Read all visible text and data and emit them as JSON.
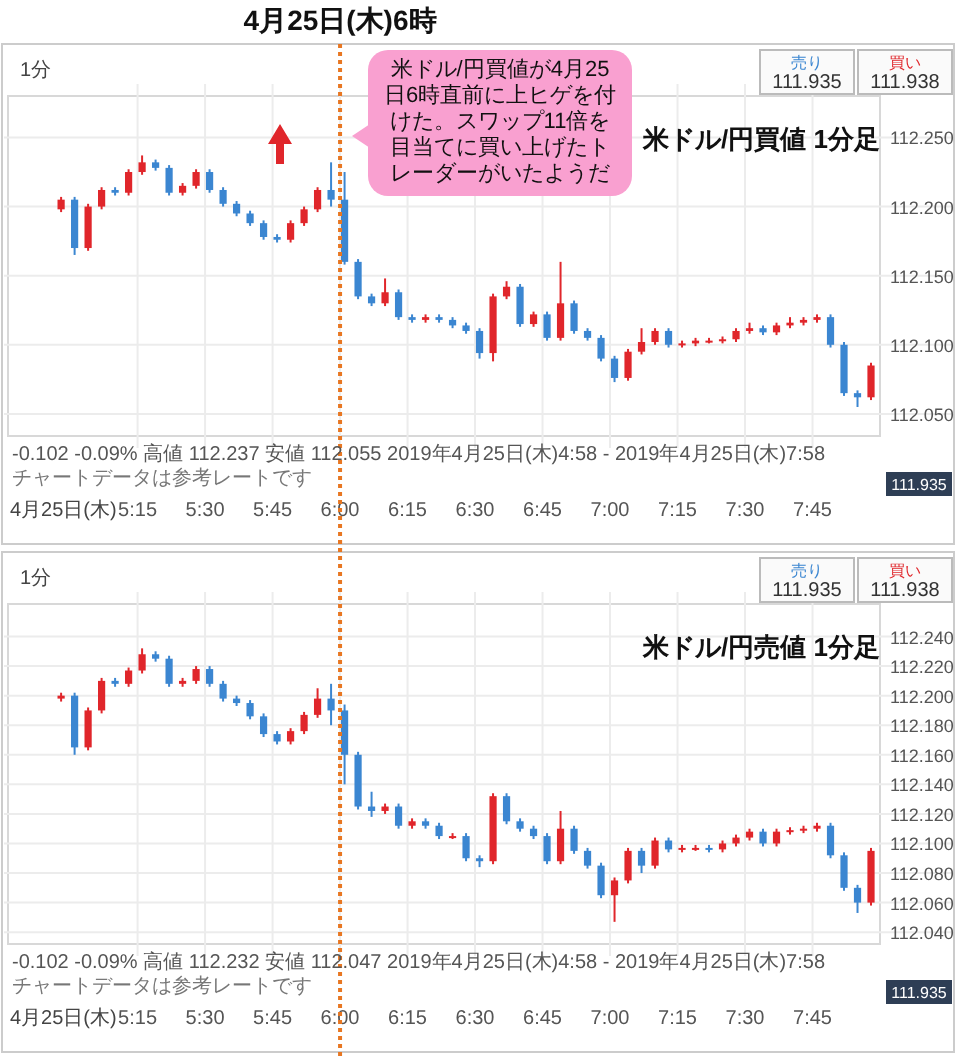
{
  "chart_data": [
    {
      "type": "candlestick",
      "title": "米ドル/円買値 1分足",
      "grid": true,
      "x": [
        4.9667,
        5.0167,
        5.0667,
        5.1167,
        5.1667,
        5.2167,
        5.2667,
        5.3167,
        5.3667,
        5.4167,
        5.4667,
        5.5167,
        5.5667,
        5.6167,
        5.6667,
        5.7167,
        5.7667,
        5.8167,
        5.8667,
        5.9167,
        5.9667,
        6.0167,
        6.0667,
        6.1167,
        6.1667,
        6.2167,
        6.2667,
        6.3167,
        6.3667,
        6.4167,
        6.4667,
        6.5167,
        6.5667,
        6.6167,
        6.6667,
        6.7167,
        6.7667,
        6.8167,
        6.8667,
        6.9167,
        6.9667,
        7.0167,
        7.0667,
        7.1167,
        7.1667,
        7.2167,
        7.2667,
        7.3167,
        7.3667,
        7.4167,
        7.4667,
        7.5167,
        7.5667,
        7.6167,
        7.6667,
        7.7167,
        7.7667,
        7.8167,
        7.8667,
        7.9167,
        7.9667
      ],
      "ohlc": [
        [
          112.198,
          112.207,
          112.196,
          112.205
        ],
        [
          112.205,
          112.207,
          112.165,
          112.17
        ],
        [
          112.17,
          112.202,
          112.168,
          112.2
        ],
        [
          112.2,
          112.214,
          112.198,
          112.212
        ],
        [
          112.212,
          112.214,
          112.208,
          112.21
        ],
        [
          112.21,
          112.227,
          112.208,
          112.225
        ],
        [
          112.225,
          112.237,
          112.223,
          112.232
        ],
        [
          112.232,
          112.234,
          112.226,
          112.228
        ],
        [
          112.228,
          112.23,
          112.208,
          112.21
        ],
        [
          112.21,
          112.217,
          112.208,
          112.215
        ],
        [
          112.215,
          112.227,
          112.213,
          112.225
        ],
        [
          112.225,
          112.227,
          112.21,
          112.212
        ],
        [
          112.212,
          112.214,
          112.2,
          112.202
        ],
        [
          112.202,
          112.204,
          112.193,
          112.195
        ],
        [
          112.195,
          112.197,
          112.186,
          112.188
        ],
        [
          112.188,
          112.19,
          112.176,
          112.178
        ],
        [
          112.178,
          112.18,
          112.174,
          112.176
        ],
        [
          112.176,
          112.19,
          112.174,
          112.188
        ],
        [
          112.188,
          112.2,
          112.186,
          112.198
        ],
        [
          112.198,
          112.214,
          112.196,
          112.212
        ],
        [
          112.212,
          112.232,
          112.2,
          112.205
        ],
        [
          112.205,
          112.225,
          112.158,
          112.16
        ],
        [
          112.16,
          112.162,
          112.133,
          112.135
        ],
        [
          112.135,
          112.137,
          112.128,
          112.13
        ],
        [
          112.13,
          112.148,
          112.128,
          112.138
        ],
        [
          112.138,
          112.14,
          112.118,
          112.12
        ],
        [
          112.12,
          112.122,
          112.116,
          112.118
        ],
        [
          112.118,
          112.122,
          112.116,
          112.12
        ],
        [
          112.12,
          112.122,
          112.116,
          112.118
        ],
        [
          112.118,
          112.12,
          112.112,
          112.114
        ],
        [
          112.114,
          112.116,
          112.108,
          112.11
        ],
        [
          112.11,
          112.112,
          112.09,
          112.094
        ],
        [
          112.094,
          112.137,
          112.088,
          112.135
        ],
        [
          112.135,
          112.146,
          112.133,
          112.142
        ],
        [
          112.142,
          112.144,
          112.113,
          112.115
        ],
        [
          112.115,
          112.124,
          112.113,
          112.122
        ],
        [
          112.122,
          112.124,
          112.103,
          112.105
        ],
        [
          112.105,
          112.16,
          112.103,
          112.13
        ],
        [
          112.13,
          112.132,
          112.108,
          112.11
        ],
        [
          112.11,
          112.112,
          112.103,
          112.105
        ],
        [
          112.105,
          112.107,
          112.088,
          112.09
        ],
        [
          112.09,
          112.092,
          112.073,
          112.076
        ],
        [
          112.076,
          112.097,
          112.074,
          112.095
        ],
        [
          112.095,
          112.112,
          112.093,
          112.102
        ],
        [
          112.102,
          112.112,
          112.1,
          112.11
        ],
        [
          112.11,
          112.112,
          112.098,
          112.1
        ],
        [
          112.1,
          112.103,
          112.098,
          112.101
        ],
        [
          112.101,
          112.105,
          112.099,
          112.103
        ],
        [
          112.103,
          112.105,
          112.101,
          112.103
        ],
        [
          112.103,
          112.106,
          112.101,
          112.104
        ],
        [
          112.104,
          112.112,
          112.102,
          112.11
        ],
        [
          112.11,
          112.116,
          112.108,
          112.112
        ],
        [
          112.112,
          112.114,
          112.107,
          112.109
        ],
        [
          112.109,
          112.116,
          112.107,
          112.114
        ],
        [
          112.114,
          112.12,
          112.112,
          112.116
        ],
        [
          112.116,
          112.12,
          112.114,
          112.118
        ],
        [
          112.118,
          112.122,
          112.116,
          112.12
        ],
        [
          112.12,
          112.122,
          112.098,
          112.1
        ],
        [
          112.1,
          112.102,
          112.063,
          112.065
        ],
        [
          112.065,
          112.067,
          112.055,
          112.062
        ],
        [
          112.062,
          112.087,
          112.06,
          112.085
        ]
      ],
      "xlim": [
        4.77,
        8.0
      ],
      "xlabel": "4月25日(木)",
      "xticks": [
        {
          "value": 5.25,
          "label": "5:15"
        },
        {
          "value": 5.5,
          "label": "5:30"
        },
        {
          "value": 5.75,
          "label": "5:45"
        },
        {
          "value": 6,
          "label": "6:00"
        },
        {
          "value": 6.25,
          "label": "6:15"
        },
        {
          "value": 6.5,
          "label": "6:30"
        },
        {
          "value": 6.75,
          "label": "6:45"
        },
        {
          "value": 7,
          "label": "7:00"
        },
        {
          "value": 7.25,
          "label": "7:15"
        },
        {
          "value": 7.5,
          "label": "7:30"
        },
        {
          "value": 7.75,
          "label": "7:45"
        }
      ],
      "ylim": [
        112.034,
        112.28
      ],
      "yticks": [
        {
          "value": 112.05,
          "label": "112.050"
        },
        {
          "value": 112.1,
          "label": "112.100"
        },
        {
          "value": 112.15,
          "label": "112.150"
        },
        {
          "value": 112.2,
          "label": "112.200"
        },
        {
          "value": 112.25,
          "label": "112.250"
        }
      ],
      "ref_lines": [
        {
          "axis": "x",
          "value": 6,
          "label": "4月25日(木)6時",
          "color": "#e87722",
          "line_style": "dotted"
        }
      ],
      "annotations": [
        "1分",
        "売り",
        "111.935",
        "買い",
        "111.938",
        "-0.102 -0.09% 高値 112.237 安値 112.055 2019年4月25日(木)4:58 - 2019年4月25日(木)7:58",
        "チャートデータは参考レートです",
        "111.935",
        "米ドル/円買値が4月25日6時直前に上ヒゲを付けた。スワップ11倍を目当てに買い上げたトレーダーがいたようだ"
      ]
    },
    {
      "type": "candlestick",
      "title": "米ドル/円売値 1分足",
      "grid": true,
      "x": [
        4.9667,
        5.0167,
        5.0667,
        5.1167,
        5.1667,
        5.2167,
        5.2667,
        5.3167,
        5.3667,
        5.4167,
        5.4667,
        5.5167,
        5.5667,
        5.6167,
        5.6667,
        5.7167,
        5.7667,
        5.8167,
        5.8667,
        5.9167,
        5.9667,
        6.0167,
        6.0667,
        6.1167,
        6.1667,
        6.2167,
        6.2667,
        6.3167,
        6.3667,
        6.4167,
        6.4667,
        6.5167,
        6.5667,
        6.6167,
        6.6667,
        6.7167,
        6.7667,
        6.8167,
        6.8667,
        6.9167,
        6.9667,
        7.0167,
        7.0667,
        7.1167,
        7.1667,
        7.2167,
        7.2667,
        7.3167,
        7.3667,
        7.4167,
        7.4667,
        7.5167,
        7.5667,
        7.6167,
        7.6667,
        7.7167,
        7.7667,
        7.8167,
        7.8667,
        7.9167,
        7.9667
      ],
      "ohlc": [
        [
          112.198,
          112.202,
          112.196,
          112.2
        ],
        [
          112.2,
          112.202,
          112.16,
          112.165
        ],
        [
          112.165,
          112.192,
          112.163,
          112.19
        ],
        [
          112.19,
          112.212,
          112.188,
          112.21
        ],
        [
          112.21,
          112.212,
          112.206,
          112.208
        ],
        [
          112.208,
          112.219,
          112.206,
          112.217
        ],
        [
          112.217,
          112.232,
          112.215,
          112.228
        ],
        [
          112.228,
          112.23,
          112.223,
          112.225
        ],
        [
          112.225,
          112.227,
          112.206,
          112.208
        ],
        [
          112.208,
          112.212,
          112.206,
          112.21
        ],
        [
          112.21,
          112.22,
          112.208,
          112.218
        ],
        [
          112.218,
          112.22,
          112.206,
          112.208
        ],
        [
          112.208,
          112.21,
          112.196,
          112.198
        ],
        [
          112.198,
          112.2,
          112.193,
          112.195
        ],
        [
          112.195,
          112.197,
          112.184,
          112.186
        ],
        [
          112.186,
          112.188,
          112.172,
          112.174
        ],
        [
          112.174,
          112.176,
          112.167,
          112.169
        ],
        [
          112.169,
          112.178,
          112.167,
          112.176
        ],
        [
          112.176,
          112.189,
          112.174,
          112.187
        ],
        [
          112.187,
          112.205,
          112.185,
          112.198
        ],
        [
          112.198,
          112.208,
          112.18,
          112.19
        ],
        [
          112.19,
          112.194,
          112.14,
          112.16
        ],
        [
          112.16,
          112.162,
          112.123,
          112.125
        ],
        [
          112.125,
          112.135,
          112.118,
          112.122
        ],
        [
          112.122,
          112.127,
          112.12,
          112.125
        ],
        [
          112.125,
          112.127,
          112.11,
          112.112
        ],
        [
          112.112,
          112.117,
          112.11,
          112.115
        ],
        [
          112.115,
          112.117,
          112.11,
          112.112
        ],
        [
          112.112,
          112.114,
          112.103,
          112.105
        ],
        [
          112.105,
          112.107,
          112.103,
          112.105
        ],
        [
          112.105,
          112.107,
          112.088,
          112.09
        ],
        [
          112.09,
          112.092,
          112.084,
          112.088
        ],
        [
          112.088,
          112.134,
          112.086,
          112.132
        ],
        [
          112.132,
          112.134,
          112.113,
          112.115
        ],
        [
          112.115,
          112.117,
          112.108,
          112.11
        ],
        [
          112.11,
          112.112,
          112.103,
          112.105
        ],
        [
          112.105,
          112.107,
          112.086,
          112.088
        ],
        [
          112.088,
          112.122,
          112.086,
          112.11
        ],
        [
          112.11,
          112.112,
          112.093,
          112.095
        ],
        [
          112.095,
          112.097,
          112.083,
          112.085
        ],
        [
          112.085,
          112.087,
          112.063,
          112.065
        ],
        [
          112.065,
          112.077,
          112.047,
          112.075
        ],
        [
          112.075,
          112.097,
          112.073,
          112.095
        ],
        [
          112.095,
          112.097,
          112.08,
          112.085
        ],
        [
          112.085,
          112.104,
          112.083,
          112.102
        ],
        [
          112.102,
          112.104,
          112.094,
          112.096
        ],
        [
          112.096,
          112.099,
          112.094,
          112.097
        ],
        [
          112.097,
          112.099,
          112.095,
          112.097
        ],
        [
          112.097,
          112.099,
          112.094,
          112.096
        ],
        [
          112.096,
          112.102,
          112.094,
          112.1
        ],
        [
          112.1,
          112.106,
          112.098,
          112.104
        ],
        [
          112.104,
          112.11,
          112.102,
          112.108
        ],
        [
          112.108,
          112.11,
          112.098,
          112.1
        ],
        [
          112.1,
          112.11,
          112.098,
          112.108
        ],
        [
          112.108,
          112.111,
          112.106,
          112.109
        ],
        [
          112.109,
          112.112,
          112.107,
          112.11
        ],
        [
          112.11,
          112.114,
          112.108,
          112.112
        ],
        [
          112.112,
          112.114,
          112.09,
          112.092
        ],
        [
          112.092,
          112.094,
          112.068,
          112.07
        ],
        [
          112.07,
          112.072,
          112.053,
          112.06
        ],
        [
          112.06,
          112.097,
          112.058,
          112.095
        ]
      ],
      "xlim": [
        4.77,
        8.0
      ],
      "xlabel": "4月25日(木)",
      "xticks": [
        {
          "value": 5.25,
          "label": "5:15"
        },
        {
          "value": 5.5,
          "label": "5:30"
        },
        {
          "value": 5.75,
          "label": "5:45"
        },
        {
          "value": 6,
          "label": "6:00"
        },
        {
          "value": 6.25,
          "label": "6:15"
        },
        {
          "value": 6.5,
          "label": "6:30"
        },
        {
          "value": 6.75,
          "label": "6:45"
        },
        {
          "value": 7,
          "label": "7:00"
        },
        {
          "value": 7.25,
          "label": "7:15"
        },
        {
          "value": 7.5,
          "label": "7:30"
        },
        {
          "value": 7.75,
          "label": "7:45"
        }
      ],
      "ylim": [
        112.032,
        112.262
      ],
      "yticks": [
        {
          "value": 112.04,
          "label": "112.040"
        },
        {
          "value": 112.06,
          "label": "112.060"
        },
        {
          "value": 112.08,
          "label": "112.080"
        },
        {
          "value": 112.1,
          "label": "112.100"
        },
        {
          "value": 112.12,
          "label": "112.120"
        },
        {
          "value": 112.14,
          "label": "112.140"
        },
        {
          "value": 112.16,
          "label": "112.160"
        },
        {
          "value": 112.18,
          "label": "112.180"
        },
        {
          "value": 112.2,
          "label": "112.200"
        },
        {
          "value": 112.22,
          "label": "112.220"
        },
        {
          "value": 112.24,
          "label": "112.240"
        }
      ],
      "ref_lines": [
        {
          "axis": "x",
          "value": 6,
          "color": "#e87722",
          "line_style": "dotted"
        }
      ],
      "annotations": [
        "1分",
        "売り",
        "111.935",
        "買い",
        "111.938",
        "-0.102 -0.09% 高値 112.232 安値 112.047 2019年4月25日(木)4:58 - 2019年4月25日(木)7:58",
        "チャートデータは参考レートです",
        "111.935"
      ]
    }
  ]
}
